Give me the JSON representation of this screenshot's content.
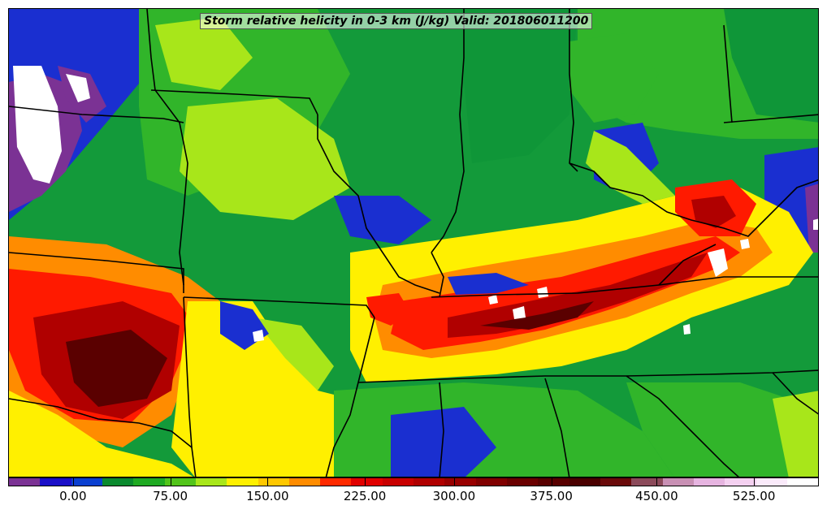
{
  "title": "Storm relative helicity in 0-3 km (J/kg) Valid: 201806011200",
  "colorbar": {
    "colors": [
      "#7b3294",
      "#1a0fc8",
      "#0a3fd0",
      "#0a8a2e",
      "#1faa22",
      "#52c41a",
      "#a8e61a",
      "#fff000",
      "#ffc800",
      "#ff8c00",
      "#ff2a00",
      "#e00000",
      "#c80000",
      "#b00000",
      "#980000",
      "#800000",
      "#6a0000",
      "#580000",
      "#4a0000",
      "#6a0a0a",
      "#8b4a5a",
      "#c890b4",
      "#e6b4e0",
      "#f4d0f0",
      "#faeafa",
      "#ffffff"
    ],
    "labels": [
      "0.00",
      "75.00",
      "150.00",
      "225.00",
      "300.00",
      "375.00",
      "450.00",
      "525.00"
    ],
    "label_positions": [
      0.08,
      0.2,
      0.32,
      0.44,
      0.55,
      0.67,
      0.8,
      0.92
    ]
  },
  "field_colors": {
    "green_dark": "#0f9638",
    "green": "#31b52a",
    "lime": "#a8e61a",
    "yellow": "#fff000",
    "orange": "#ff8c00",
    "red": "#ff1a00",
    "darkred": "#b00000",
    "maroon": "#5a0000",
    "blue": "#1a2fd0",
    "purple": "#7b3294",
    "white": "#ffffff"
  }
}
